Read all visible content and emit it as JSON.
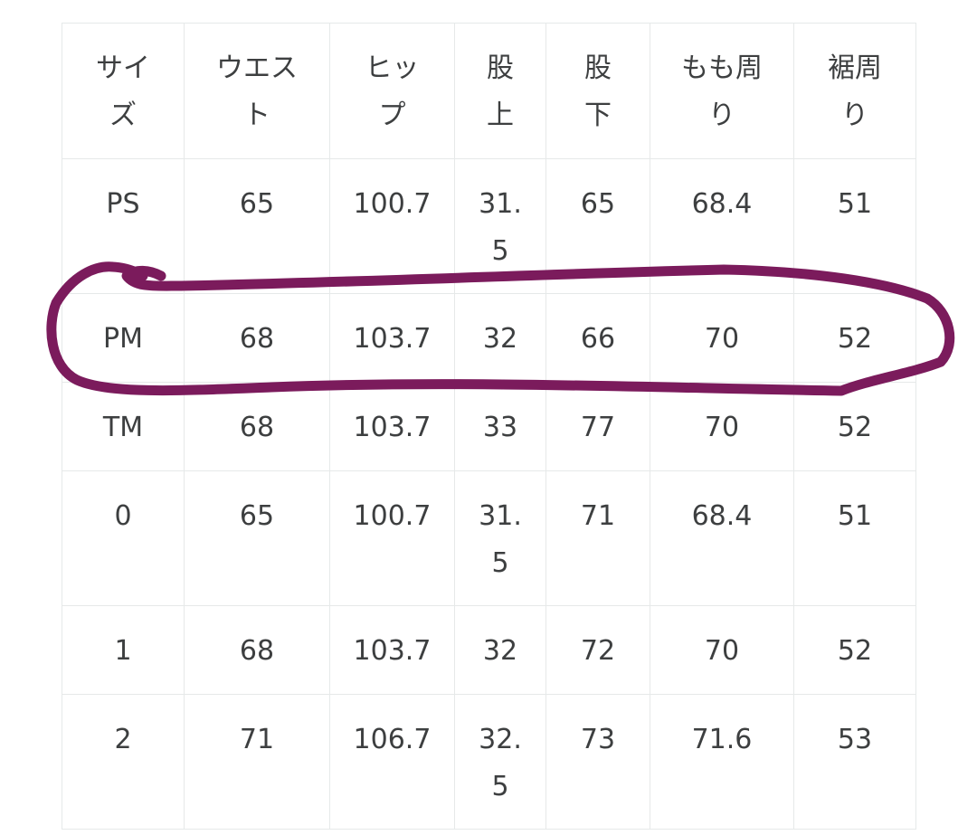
{
  "table": {
    "headers": [
      "サイズ",
      "ウエスト",
      "ヒップ",
      "股上",
      "股下",
      "もも周り",
      "裾周り"
    ],
    "rows": [
      [
        "PS",
        "65",
        "100.7",
        "31.5",
        "65",
        "68.4",
        "51"
      ],
      [
        "PM",
        "68",
        "103.7",
        "32",
        "66",
        "70",
        "52"
      ],
      [
        "TM",
        "68",
        "103.7",
        "33",
        "77",
        "70",
        "52"
      ],
      [
        "0",
        "65",
        "100.7",
        "31.5",
        "71",
        "68.4",
        "51"
      ],
      [
        "1",
        "68",
        "103.7",
        "32",
        "72",
        "70",
        "52"
      ],
      [
        "2",
        "71",
        "106.7",
        "32.5",
        "73",
        "71.6",
        "53"
      ]
    ]
  },
  "annotation": {
    "color": "#7b1b5c",
    "highlighted_row": "PM"
  }
}
